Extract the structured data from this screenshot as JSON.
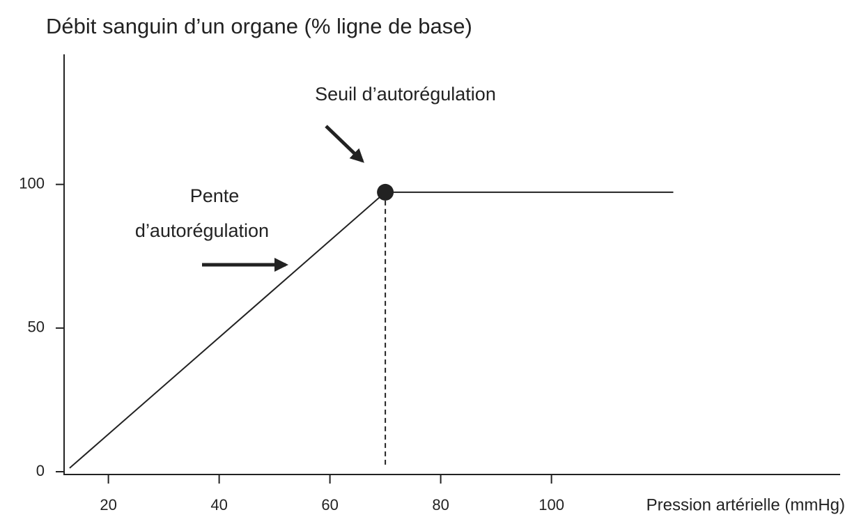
{
  "chart_data": {
    "type": "line",
    "y_label": "Débit sanguin d’un organe (% ligne de base)",
    "x_label": "Pression artérielle (mmHg)",
    "threshold_label": "Seuil d’autorégulation",
    "slope_label": [
      "Pente",
      "d’autorégulation"
    ],
    "x": [
      13,
      70,
      122
    ],
    "series": [
      {
        "color": "#222222",
        "values": [
          2,
          98,
          98
        ]
      }
    ],
    "xlim": [
      12,
      152
    ],
    "ylim": [
      0,
      146
    ],
    "xticks": [
      20,
      40,
      60,
      80,
      100
    ],
    "yticks": [
      0,
      50,
      100
    ],
    "grid": false
  }
}
